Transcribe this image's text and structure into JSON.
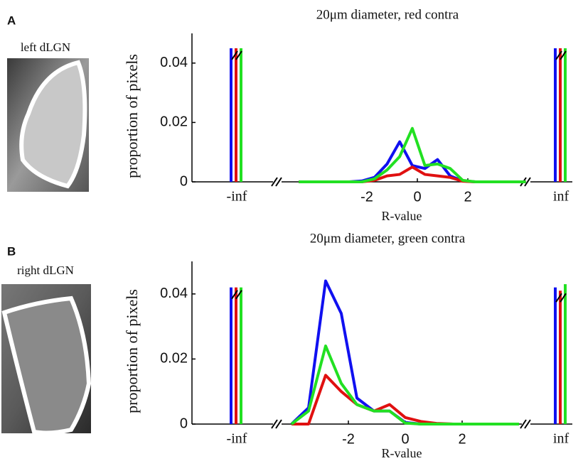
{
  "chart_data": [
    {
      "type": "line",
      "panel_label": "A",
      "image_label": "left dLGN",
      "title": "20μm diameter, red contra",
      "y_label": "proportion of pixels",
      "x_label": "R-value",
      "x": [
        -4.7,
        -4.2,
        -3.7,
        -3.2,
        -2.7,
        -2.2,
        -1.7,
        -1.2,
        -0.7,
        -0.2,
        0.3,
        0.8,
        1.3,
        1.8,
        2.3,
        2.8,
        3.3,
        3.8,
        4.3
      ],
      "series": [
        {
          "color": "#1010f0",
          "values": [
            0,
            0,
            0,
            0,
            0,
            0.0003,
            0.0015,
            0.006,
            0.0135,
            0.0055,
            0.0045,
            0.0075,
            0.002,
            0.0003,
            0,
            0,
            0,
            0,
            0
          ],
          "inf_values": [
            0.045,
            0.045
          ]
        },
        {
          "color": "#e01010",
          "values": [
            0,
            0,
            0,
            0,
            0,
            0,
            0.0005,
            0.002,
            0.0025,
            0.005,
            0.0025,
            0.002,
            0.0015,
            0.0002,
            0,
            0,
            0,
            0,
            0
          ],
          "inf_values": [
            0.045,
            0.045
          ]
        },
        {
          "color": "#22e022",
          "values": [
            0,
            0,
            0,
            0,
            0,
            0,
            0.001,
            0.004,
            0.0085,
            0.018,
            0.0055,
            0.006,
            0.0045,
            0.0005,
            0,
            0,
            0,
            0,
            0
          ],
          "inf_values": [
            0.045,
            0.045
          ]
        }
      ],
      "inf_labels": [
        "-inf",
        "inf"
      ],
      "xlim": [
        -5.55,
        4.31
      ],
      "xticks": [
        -2,
        0,
        2
      ],
      "ylim": [
        0,
        0.05
      ],
      "yticks": [
        0,
        0.02,
        0.04
      ]
    },
    {
      "type": "line",
      "panel_label": "B",
      "image_label": "right dLGN",
      "title": "20μm diameter, green contra",
      "y_label": "proportion of pixels",
      "x_label": "R-value",
      "x": [
        -4,
        -3.4,
        -2.8,
        -2.25,
        -1.7,
        -1.1,
        -0.55,
        0,
        0.55,
        1.1,
        1.7,
        2.25,
        2.8,
        3.4,
        4
      ],
      "series": [
        {
          "color": "#1010f0",
          "values": [
            0,
            0.005,
            0.044,
            0.034,
            0.008,
            0.004,
            0.004,
            0.0005,
            0,
            0,
            0,
            0,
            0,
            0,
            0
          ],
          "inf_values": [
            0.042,
            0.042
          ]
        },
        {
          "color": "#e01010",
          "values": [
            0,
            0,
            0.015,
            0.01,
            0.006,
            0.004,
            0.006,
            0.002,
            0.0008,
            0.0002,
            0,
            0,
            0,
            0,
            0
          ],
          "inf_values": [
            0.042,
            0.041
          ]
        },
        {
          "color": "#22e022",
          "values": [
            0,
            0.004,
            0.024,
            0.0125,
            0.006,
            0.004,
            0.004,
            0.0003,
            0,
            0,
            0,
            0,
            0,
            0,
            0
          ],
          "inf_values": [
            0.042,
            0.043
          ]
        }
      ],
      "inf_labels": [
        "-inf",
        "inf"
      ],
      "xlim": [
        -4.5,
        4.25
      ],
      "xticks": [
        -2,
        0,
        2
      ],
      "ylim": [
        0,
        0.05
      ],
      "yticks": [
        0,
        0.02,
        0.04
      ]
    }
  ]
}
